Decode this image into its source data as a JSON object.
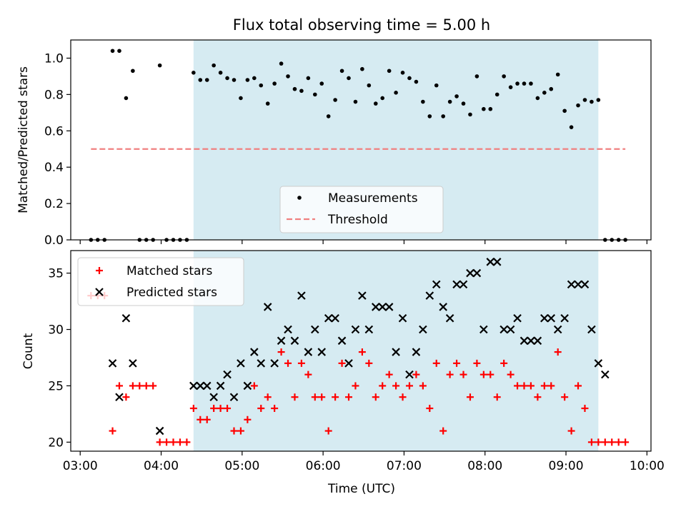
{
  "chart_data": [
    {
      "type": "scatter",
      "title": "Flux total observing time = 5.00 h",
      "xlabel": "",
      "ylabel": "Matched/Predicted stars",
      "xlim": [
        "03:00",
        "10:00"
      ],
      "ylim": [
        0.0,
        1.1
      ],
      "yticks": [
        "0.0",
        "0.2",
        "0.4",
        "0.6",
        "0.8",
        "1.0"
      ],
      "highlight_span": {
        "x_start": "04:24",
        "x_end": "09:24",
        "color": "#add8e6"
      },
      "legend": {
        "placement": "lower-center"
      },
      "series": [
        {
          "name": "Measurements",
          "marker": "dot",
          "color": "#000000",
          "points": [
            [
              "03:08",
              0
            ],
            [
              "03:13",
              0
            ],
            [
              "03:18",
              0
            ],
            [
              "03:24",
              1.04
            ],
            [
              "03:29",
              1.04
            ],
            [
              "03:34",
              0.78
            ],
            [
              "03:39",
              0.93
            ],
            [
              "03:44",
              0
            ],
            [
              "03:49",
              0
            ],
            [
              "03:54",
              0
            ],
            [
              "03:59",
              0.96
            ],
            [
              "04:04",
              0
            ],
            [
              "04:09",
              0
            ],
            [
              "04:14",
              0
            ],
            [
              "04:19",
              0
            ],
            [
              "04:24",
              0.92
            ],
            [
              "04:29",
              0.88
            ],
            [
              "04:34",
              0.88
            ],
            [
              "04:39",
              0.96
            ],
            [
              "04:44",
              0.92
            ],
            [
              "04:49",
              0.89
            ],
            [
              "04:54",
              0.88
            ],
            [
              "04:59",
              0.78
            ],
            [
              "05:04",
              0.88
            ],
            [
              "05:09",
              0.89
            ],
            [
              "05:14",
              0.85
            ],
            [
              "05:19",
              0.75
            ],
            [
              "05:24",
              0.86
            ],
            [
              "05:29",
              0.97
            ],
            [
              "05:34",
              0.9
            ],
            [
              "05:39",
              0.83
            ],
            [
              "05:44",
              0.82
            ],
            [
              "05:49",
              0.89
            ],
            [
              "05:54",
              0.8
            ],
            [
              "05:59",
              0.86
            ],
            [
              "06:04",
              0.68
            ],
            [
              "06:09",
              0.77
            ],
            [
              "06:14",
              0.93
            ],
            [
              "06:19",
              0.89
            ],
            [
              "06:24",
              0.76
            ],
            [
              "06:29",
              0.94
            ],
            [
              "06:34",
              0.85
            ],
            [
              "06:39",
              0.75
            ],
            [
              "06:44",
              0.78
            ],
            [
              "06:49",
              0.93
            ],
            [
              "06:54",
              0.81
            ],
            [
              "06:59",
              0.92
            ],
            [
              "07:04",
              0.89
            ],
            [
              "07:09",
              0.87
            ],
            [
              "07:14",
              0.76
            ],
            [
              "07:19",
              0.68
            ],
            [
              "07:24",
              0.85
            ],
            [
              "07:29",
              0.68
            ],
            [
              "07:34",
              0.76
            ],
            [
              "07:39",
              0.79
            ],
            [
              "07:44",
              0.75
            ],
            [
              "07:49",
              0.69
            ],
            [
              "07:54",
              0.9
            ],
            [
              "07:59",
              0.72
            ],
            [
              "08:04",
              0.72
            ],
            [
              "08:09",
              0.8
            ],
            [
              "08:14",
              0.9
            ],
            [
              "08:19",
              0.84
            ],
            [
              "08:24",
              0.86
            ],
            [
              "08:29",
              0.86
            ],
            [
              "08:34",
              0.86
            ],
            [
              "08:39",
              0.78
            ],
            [
              "08:44",
              0.81
            ],
            [
              "08:49",
              0.83
            ],
            [
              "08:54",
              0.91
            ],
            [
              "08:59",
              0.71
            ],
            [
              "09:04",
              0.62
            ],
            [
              "09:09",
              0.74
            ],
            [
              "09:14",
              0.77
            ],
            [
              "09:19",
              0.76
            ],
            [
              "09:24",
              0.77
            ],
            [
              "09:29",
              0
            ],
            [
              "09:34",
              0
            ],
            [
              "09:39",
              0
            ],
            [
              "09:44",
              0
            ]
          ]
        },
        {
          "name": "Threshold",
          "marker": "dashed-line",
          "color": "#f08080",
          "points": [
            [
              "03:08",
              0.5
            ],
            [
              "09:44",
              0.5
            ]
          ]
        }
      ]
    },
    {
      "type": "scatter",
      "title": "",
      "xlabel": "Time (UTC)",
      "ylabel": "Count",
      "xlim": [
        "03:00",
        "10:00"
      ],
      "ylim": [
        19.2,
        37.0
      ],
      "xticks": [
        "03:00",
        "04:00",
        "05:00",
        "06:00",
        "07:00",
        "08:00",
        "09:00",
        "10:00"
      ],
      "yticks": [
        "20",
        "25",
        "30",
        "35"
      ],
      "highlight_span": {
        "x_start": "04:24",
        "x_end": "09:24",
        "color": "#add8e6"
      },
      "legend": {
        "placement": "upper-left"
      },
      "series": [
        {
          "name": "Matched stars",
          "marker": "plus",
          "color": "#ff0000",
          "points": [
            [
              "03:08",
              33
            ],
            [
              "03:13",
              33
            ],
            [
              "03:18",
              33
            ],
            [
              "03:24",
              21
            ],
            [
              "03:29",
              25
            ],
            [
              "03:34",
              24
            ],
            [
              "03:39",
              25
            ],
            [
              "03:44",
              25
            ],
            [
              "03:49",
              25
            ],
            [
              "03:54",
              25
            ],
            [
              "03:59",
              20
            ],
            [
              "04:04",
              20
            ],
            [
              "04:09",
              20
            ],
            [
              "04:14",
              20
            ],
            [
              "04:19",
              20
            ],
            [
              "04:24",
              23
            ],
            [
              "04:29",
              22
            ],
            [
              "04:34",
              22
            ],
            [
              "04:39",
              23
            ],
            [
              "04:44",
              23
            ],
            [
              "04:49",
              23
            ],
            [
              "04:54",
              21
            ],
            [
              "04:59",
              21
            ],
            [
              "05:04",
              22
            ],
            [
              "05:09",
              25
            ],
            [
              "05:14",
              23
            ],
            [
              "05:19",
              24
            ],
            [
              "05:24",
              23
            ],
            [
              "05:29",
              28
            ],
            [
              "05:34",
              27
            ],
            [
              "05:39",
              24
            ],
            [
              "05:44",
              27
            ],
            [
              "05:49",
              26
            ],
            [
              "05:54",
              24
            ],
            [
              "05:59",
              24
            ],
            [
              "06:04",
              21
            ],
            [
              "06:09",
              24
            ],
            [
              "06:14",
              27
            ],
            [
              "06:19",
              24
            ],
            [
              "06:24",
              25
            ],
            [
              "06:29",
              28
            ],
            [
              "06:34",
              27
            ],
            [
              "06:39",
              24
            ],
            [
              "06:44",
              25
            ],
            [
              "06:49",
              26
            ],
            [
              "06:54",
              25
            ],
            [
              "06:59",
              24
            ],
            [
              "07:04",
              25
            ],
            [
              "07:09",
              26
            ],
            [
              "07:14",
              25
            ],
            [
              "07:19",
              23
            ],
            [
              "07:24",
              27
            ],
            [
              "07:29",
              21
            ],
            [
              "07:34",
              26
            ],
            [
              "07:39",
              27
            ],
            [
              "07:44",
              26
            ],
            [
              "07:49",
              24
            ],
            [
              "07:54",
              27
            ],
            [
              "07:59",
              26
            ],
            [
              "08:04",
              26
            ],
            [
              "08:09",
              24
            ],
            [
              "08:14",
              27
            ],
            [
              "08:19",
              26
            ],
            [
              "08:24",
              25
            ],
            [
              "08:29",
              25
            ],
            [
              "08:34",
              25
            ],
            [
              "08:39",
              24
            ],
            [
              "08:44",
              25
            ],
            [
              "08:49",
              25
            ],
            [
              "08:54",
              28
            ],
            [
              "08:59",
              24
            ],
            [
              "09:04",
              21
            ],
            [
              "09:09",
              25
            ],
            [
              "09:14",
              23
            ],
            [
              "09:19",
              20
            ],
            [
              "09:24",
              20
            ],
            [
              "09:29",
              20
            ],
            [
              "09:34",
              20
            ],
            [
              "09:39",
              20
            ],
            [
              "09:44",
              20
            ]
          ]
        },
        {
          "name": "Predicted stars",
          "marker": "x",
          "color": "#000000",
          "points": [
            [
              "03:24",
              27
            ],
            [
              "03:29",
              24
            ],
            [
              "03:34",
              31
            ],
            [
              "03:39",
              27
            ],
            [
              "03:59",
              21
            ],
            [
              "04:24",
              25
            ],
            [
              "04:29",
              25
            ],
            [
              "04:34",
              25
            ],
            [
              "04:39",
              24
            ],
            [
              "04:44",
              25
            ],
            [
              "04:49",
              26
            ],
            [
              "04:54",
              24
            ],
            [
              "04:59",
              27
            ],
            [
              "05:04",
              25
            ],
            [
              "05:09",
              28
            ],
            [
              "05:14",
              27
            ],
            [
              "05:19",
              32
            ],
            [
              "05:24",
              27
            ],
            [
              "05:29",
              29
            ],
            [
              "05:34",
              30
            ],
            [
              "05:39",
              29
            ],
            [
              "05:44",
              33
            ],
            [
              "05:49",
              28
            ],
            [
              "05:54",
              30
            ],
            [
              "05:59",
              28
            ],
            [
              "06:04",
              31
            ],
            [
              "06:09",
              31
            ],
            [
              "06:14",
              29
            ],
            [
              "06:19",
              27
            ],
            [
              "06:24",
              30
            ],
            [
              "06:29",
              33
            ],
            [
              "06:34",
              30
            ],
            [
              "06:39",
              32
            ],
            [
              "06:44",
              32
            ],
            [
              "06:49",
              32
            ],
            [
              "06:54",
              28
            ],
            [
              "06:59",
              31
            ],
            [
              "07:04",
              26
            ],
            [
              "07:09",
              28
            ],
            [
              "07:14",
              30
            ],
            [
              "07:19",
              33
            ],
            [
              "07:24",
              34
            ],
            [
              "07:29",
              32
            ],
            [
              "07:34",
              31
            ],
            [
              "07:39",
              34
            ],
            [
              "07:44",
              34
            ],
            [
              "07:49",
              35
            ],
            [
              "07:54",
              35
            ],
            [
              "07:59",
              30
            ],
            [
              "08:04",
              36
            ],
            [
              "08:09",
              36
            ],
            [
              "08:14",
              30
            ],
            [
              "08:19",
              30
            ],
            [
              "08:24",
              31
            ],
            [
              "08:29",
              29
            ],
            [
              "08:34",
              29
            ],
            [
              "08:39",
              29
            ],
            [
              "08:44",
              31
            ],
            [
              "08:49",
              31
            ],
            [
              "08:54",
              30
            ],
            [
              "08:59",
              31
            ],
            [
              "09:04",
              34
            ],
            [
              "09:09",
              34
            ],
            [
              "09:14",
              34
            ],
            [
              "09:19",
              30
            ],
            [
              "09:24",
              27
            ],
            [
              "09:29",
              26
            ]
          ]
        }
      ]
    }
  ]
}
